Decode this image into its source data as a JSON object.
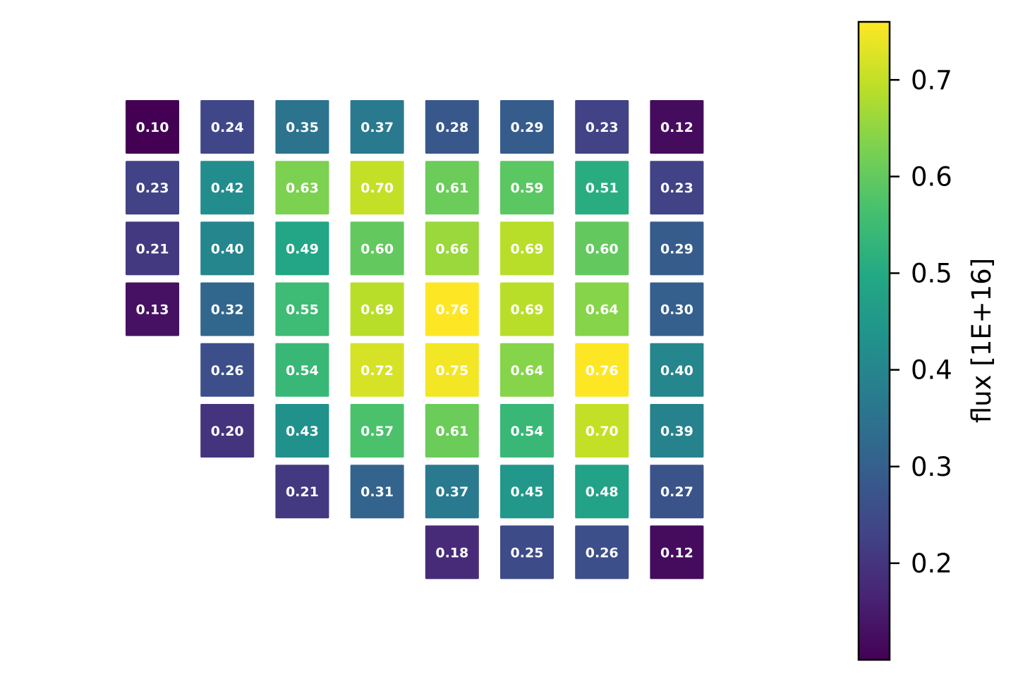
{
  "chart_data": {
    "type": "heatmap",
    "rows": [
      [
        0.1,
        0.24,
        0.35,
        0.37,
        0.28,
        0.29,
        0.23,
        0.12
      ],
      [
        0.23,
        0.42,
        0.63,
        0.7,
        0.61,
        0.59,
        0.51,
        0.23
      ],
      [
        0.21,
        0.4,
        0.49,
        0.6,
        0.66,
        0.69,
        0.6,
        0.29
      ],
      [
        0.13,
        0.32,
        0.55,
        0.69,
        0.76,
        0.69,
        0.64,
        0.3
      ],
      [
        null,
        0.26,
        0.54,
        0.72,
        0.75,
        0.64,
        0.76,
        0.4
      ],
      [
        null,
        0.2,
        0.43,
        0.57,
        0.61,
        0.54,
        0.7,
        0.39
      ],
      [
        null,
        null,
        0.21,
        0.31,
        0.37,
        0.45,
        0.48,
        0.27
      ],
      [
        null,
        null,
        null,
        null,
        0.18,
        0.25,
        0.26,
        0.12
      ]
    ],
    "value_format": "0.00",
    "colormap": "viridis",
    "color_range": [
      0.1,
      0.76
    ],
    "colorbar": {
      "label": "flux [1E+16]",
      "ticks": [
        0.2,
        0.3,
        0.4,
        0.5,
        0.6,
        0.7
      ]
    },
    "grid": false,
    "legend": "none"
  }
}
